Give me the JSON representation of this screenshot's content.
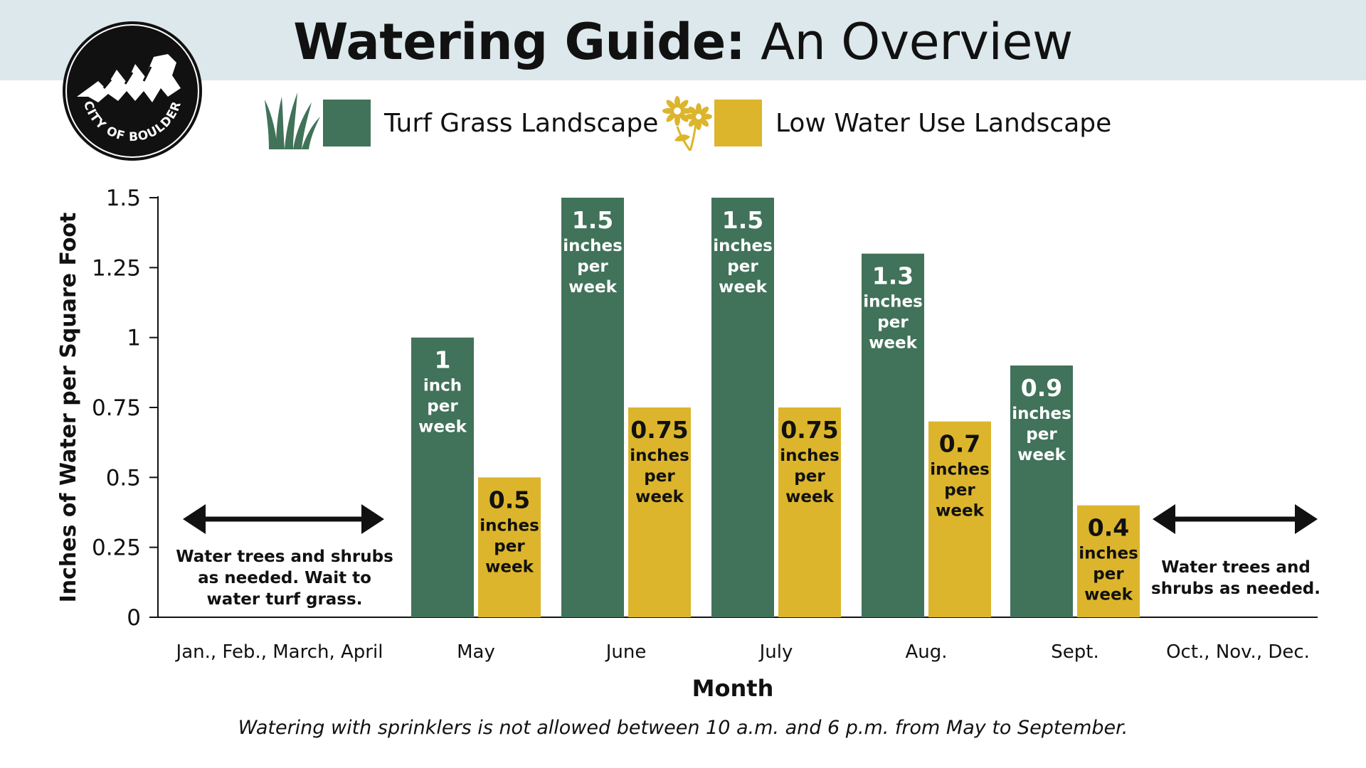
{
  "header": {
    "title_bold": "Watering Guide:",
    "title_rest": "An Overview",
    "logo_text": "CITY OF BOULDER",
    "logo_icon": "boulder-flatirons-icon"
  },
  "legend": [
    {
      "icon": "grass-icon",
      "label": "Turf Grass Landscape",
      "color": "#41725a"
    },
    {
      "icon": "flower-icon",
      "label": "Low Water Use Landscape",
      "color": "#dcb52c"
    }
  ],
  "colors": {
    "turf": "#41725a",
    "low": "#dcb52c",
    "axis": "#111111",
    "title_band": "#dce8ec"
  },
  "chart_data": {
    "type": "bar",
    "xlabel": "Month",
    "ylabel": "Inches of Water per Square Foot",
    "ylim": [
      0,
      1.5
    ],
    "yticks": [
      0,
      0.25,
      0.5,
      0.75,
      1,
      1.25,
      1.5
    ],
    "ytick_labels": [
      "0",
      "0.25",
      "0.5",
      "0.75",
      "1",
      "1.25",
      "1.5"
    ],
    "categories": [
      "Jan., Feb., March, April",
      "May",
      "June",
      "July",
      "Aug.",
      "Sept.",
      "Oct., Nov., Dec."
    ],
    "series": [
      {
        "name": "Turf Grass Landscape",
        "color": "#41725a",
        "values": [
          null,
          1,
          1.5,
          1.5,
          1.3,
          0.9,
          null
        ],
        "labels": [
          null,
          "1",
          "1.5",
          "1.5",
          "1.3",
          "0.9",
          null
        ],
        "unit_labels": [
          null,
          [
            "inch",
            "per",
            "week"
          ],
          [
            "inches",
            "per",
            "week"
          ],
          [
            "inches",
            "per",
            "week"
          ],
          [
            "inches",
            "per",
            "week"
          ],
          [
            "inches",
            "per",
            "week"
          ],
          null
        ]
      },
      {
        "name": "Low Water Use Landscape",
        "color": "#dcb52c",
        "values": [
          null,
          0.5,
          0.75,
          0.75,
          0.7,
          0.4,
          null
        ],
        "labels": [
          null,
          "0.5",
          "0.75",
          "0.75",
          "0.7",
          "0.4",
          null
        ],
        "unit_labels": [
          null,
          [
            "inches",
            "per",
            "week"
          ],
          [
            "inches",
            "per",
            "week"
          ],
          [
            "inches",
            "per",
            "week"
          ],
          [
            "inches",
            "per",
            "week"
          ],
          [
            "inches",
            "per",
            "week"
          ],
          null
        ]
      }
    ],
    "annotations": [
      {
        "category": "Jan., Feb., March, April",
        "lines": [
          "Water trees and shrubs",
          "as needed. Wait to",
          "water turf grass."
        ]
      },
      {
        "category": "Oct., Nov., Dec.",
        "lines": [
          "Water trees and",
          "shrubs as needed."
        ]
      }
    ]
  },
  "footnote": "Watering with sprinklers is not allowed between 10 a.m. and 6 p.m. from May to September."
}
